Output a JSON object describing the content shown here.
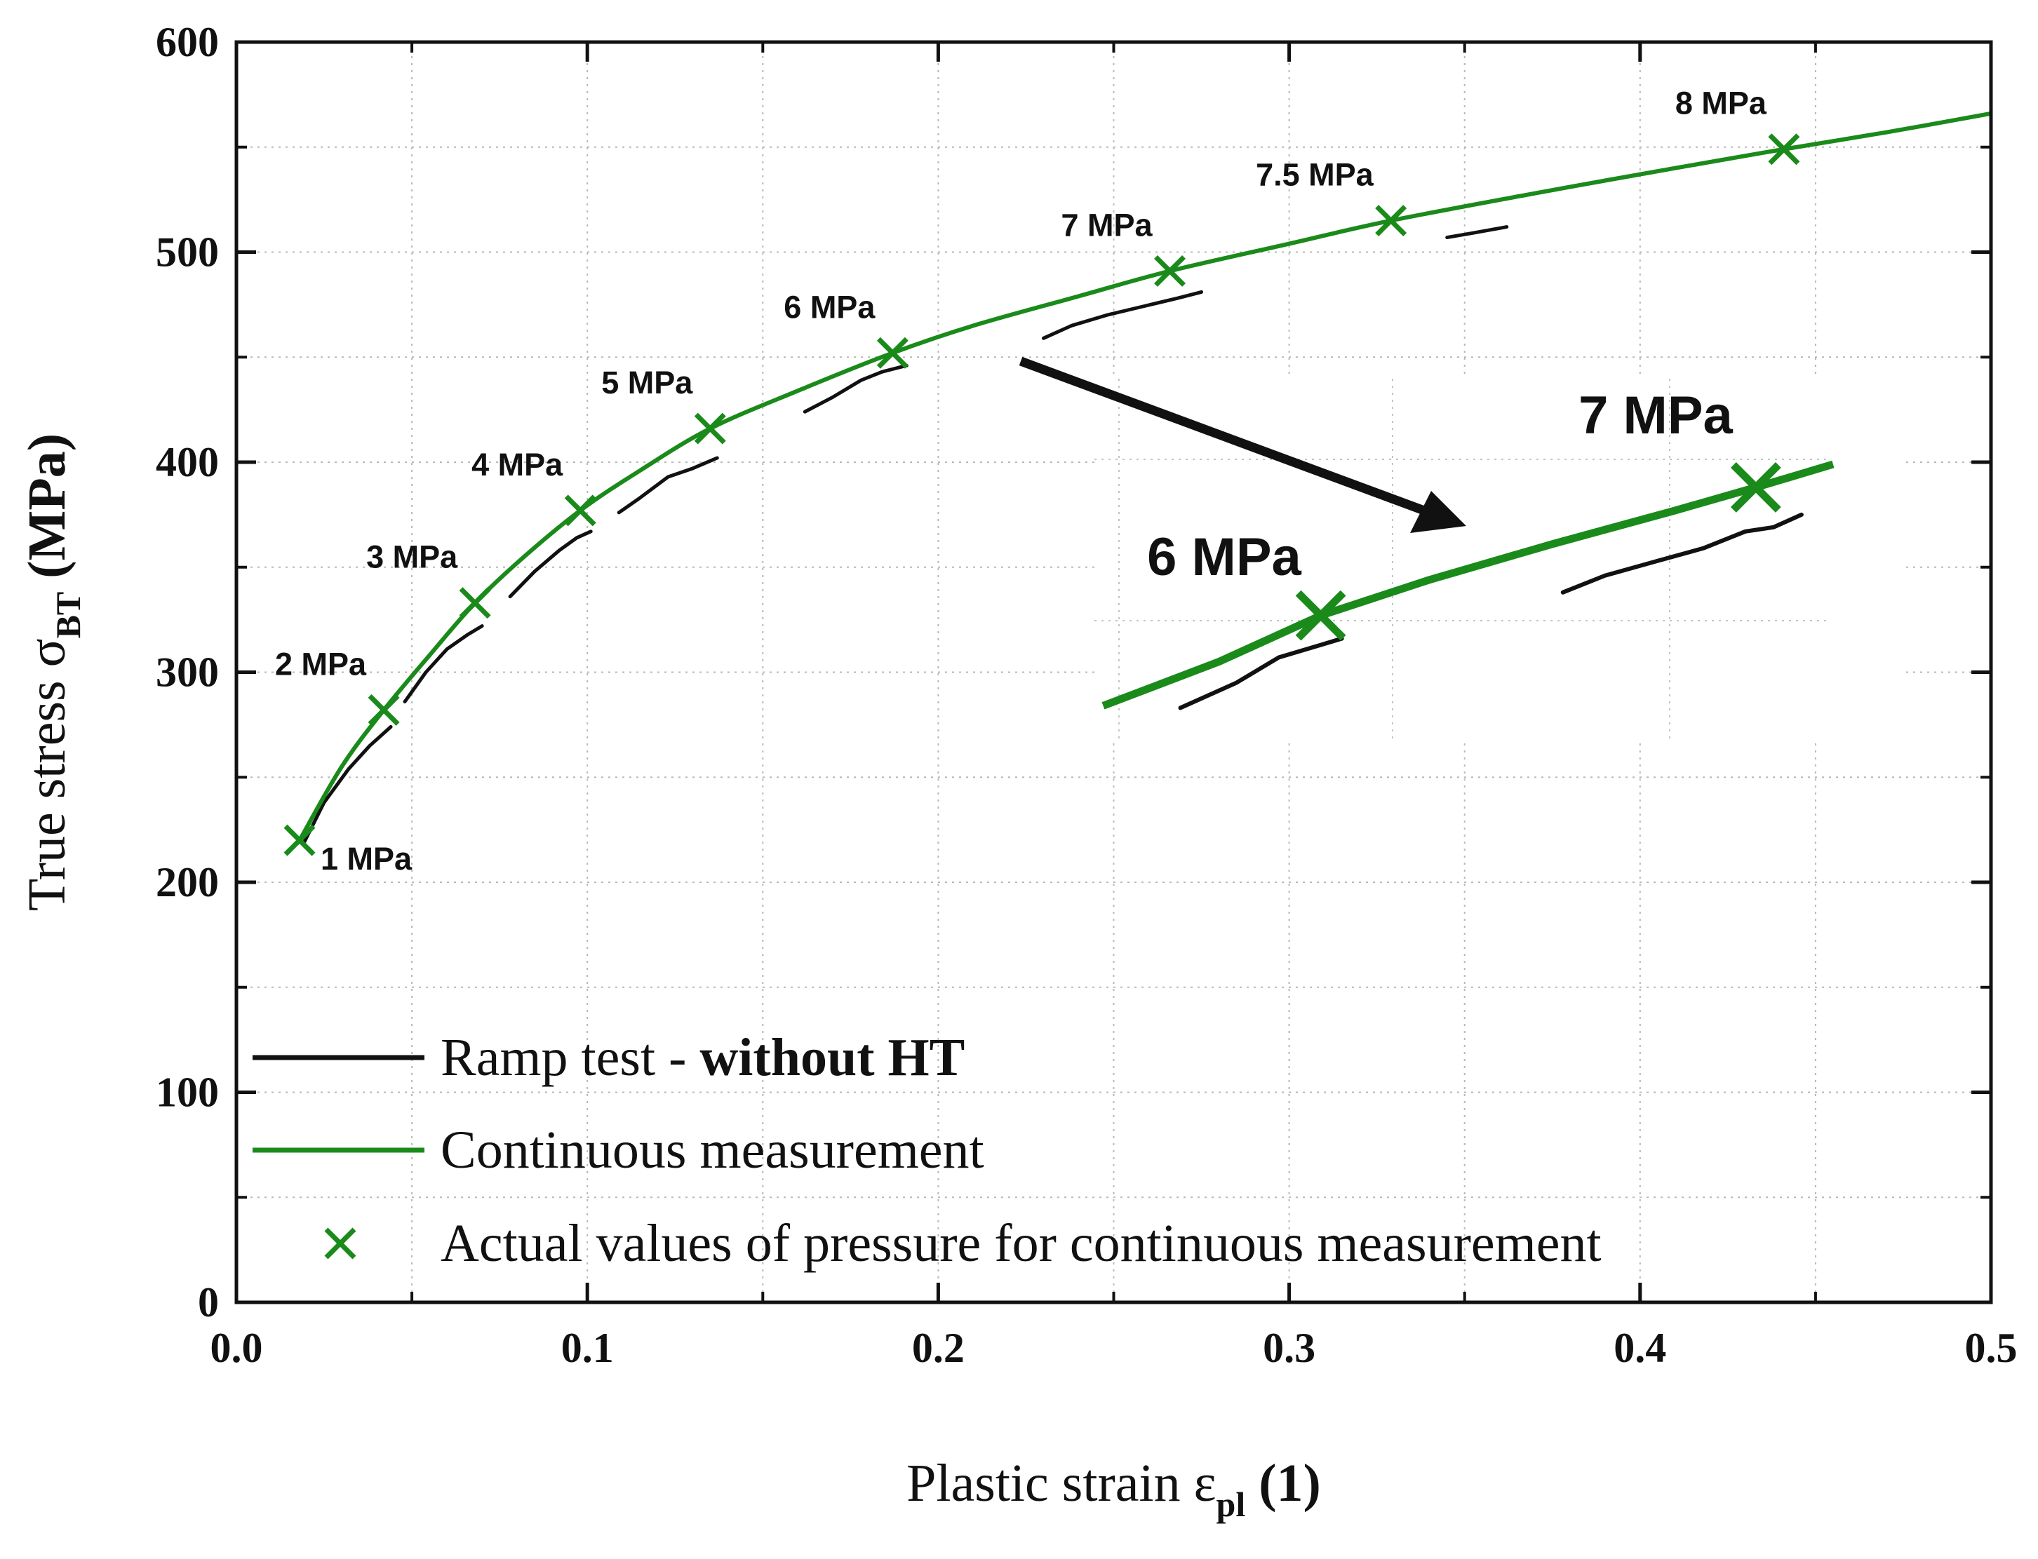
{
  "chart_data": {
    "type": "line",
    "title": "",
    "xlabel": {
      "main": "Plastic strain ε",
      "sub": "pl",
      "unit": " (1)"
    },
    "ylabel": {
      "main": "True stress σ",
      "sub": "BT",
      "unit": " (MPa)"
    },
    "xlim": [
      0.0,
      0.5
    ],
    "ylim": [
      0,
      600
    ],
    "xticks": [
      "0.0",
      "0.1",
      "0.2",
      "0.3",
      "0.4",
      "0.5"
    ],
    "xtick_values": [
      0.0,
      0.1,
      0.2,
      0.3,
      0.4,
      0.5
    ],
    "yticks": [
      "0",
      "100",
      "200",
      "300",
      "400",
      "500",
      "600"
    ],
    "ytick_values": [
      0,
      100,
      200,
      300,
      400,
      500,
      600
    ],
    "grid": true,
    "colors": {
      "ramp": "#111111",
      "continuous": "#1a8a1a",
      "grid": "#b8b8b8"
    },
    "series": [
      {
        "name": "Ramp test - without HT",
        "name_plain": "Ramp test - ",
        "name_bold": "without HT",
        "style": "segments",
        "segments": [
          [
            [
              0.019,
              218
            ],
            [
              0.025,
              238
            ],
            [
              0.032,
              254
            ],
            [
              0.038,
              265
            ],
            [
              0.044,
              274
            ]
          ],
          [
            [
              0.048,
              286
            ],
            [
              0.054,
              300
            ],
            [
              0.06,
              311
            ],
            [
              0.066,
              318
            ],
            [
              0.07,
              322
            ]
          ],
          [
            [
              0.078,
              336
            ],
            [
              0.085,
              348
            ],
            [
              0.092,
              358
            ],
            [
              0.097,
              364
            ],
            [
              0.101,
              367
            ]
          ],
          [
            [
              0.109,
              376
            ],
            [
              0.115,
              383
            ],
            [
              0.123,
              393
            ],
            [
              0.13,
              397
            ],
            [
              0.137,
              402
            ]
          ],
          [
            [
              0.162,
              424
            ],
            [
              0.17,
              431
            ],
            [
              0.178,
              439
            ],
            [
              0.184,
              443
            ],
            [
              0.191,
              446
            ]
          ],
          [
            [
              0.23,
              459
            ],
            [
              0.238,
              465
            ],
            [
              0.248,
              470
            ],
            [
              0.258,
              474
            ],
            [
              0.268,
              478
            ],
            [
              0.275,
              481
            ]
          ],
          [
            [
              0.345,
              507
            ],
            [
              0.352,
              509
            ],
            [
              0.362,
              512
            ]
          ]
        ]
      },
      {
        "name": "Continuous measurement",
        "style": "line",
        "points": [
          [
            0.018,
            220
          ],
          [
            0.03,
            255
          ],
          [
            0.042,
            282
          ],
          [
            0.055,
            308
          ],
          [
            0.068,
            333
          ],
          [
            0.082,
            355
          ],
          [
            0.098,
            377
          ],
          [
            0.115,
            396
          ],
          [
            0.135,
            416
          ],
          [
            0.16,
            434
          ],
          [
            0.187,
            452
          ],
          [
            0.21,
            465
          ],
          [
            0.24,
            479
          ],
          [
            0.266,
            491
          ],
          [
            0.3,
            504
          ],
          [
            0.329,
            515
          ],
          [
            0.37,
            528
          ],
          [
            0.41,
            540
          ],
          [
            0.441,
            549
          ],
          [
            0.47,
            557
          ],
          [
            0.5,
            566
          ]
        ]
      },
      {
        "name": "Actual values of pressure for continuous measurement",
        "style": "markers",
        "points": [
          {
            "x": 0.018,
            "y": 220,
            "label": "1 MPa",
            "anchor": "right-below"
          },
          {
            "x": 0.042,
            "y": 282,
            "label": "2 MPa",
            "anchor": "above-left"
          },
          {
            "x": 0.068,
            "y": 333,
            "label": "3 MPa",
            "anchor": "above-left"
          },
          {
            "x": 0.098,
            "y": 377,
            "label": "4 MPa",
            "anchor": "above-left"
          },
          {
            "x": 0.135,
            "y": 416,
            "label": "5 MPa",
            "anchor": "above-left"
          },
          {
            "x": 0.187,
            "y": 452,
            "label": "6 MPa",
            "anchor": "above-left"
          },
          {
            "x": 0.266,
            "y": 491,
            "label": "7 MPa",
            "anchor": "above-left"
          },
          {
            "x": 0.329,
            "y": 515,
            "label": "7.5 MPa",
            "anchor": "above-left"
          },
          {
            "x": 0.441,
            "y": 549,
            "label": "8 MPa",
            "anchor": "above-left"
          }
        ]
      }
    ],
    "inset": {
      "description_of_region": "magnified 6 MPa to 7 MPa",
      "labels": [
        "6 MPa",
        "7 MPa"
      ],
      "continuous_points": [
        [
          0.247,
          284
        ],
        [
          0.28,
          305
        ],
        [
          0.309,
          327
        ],
        [
          0.34,
          344
        ],
        [
          0.375,
          361
        ],
        [
          0.41,
          377
        ],
        [
          0.433,
          388
        ],
        [
          0.455,
          399
        ]
      ],
      "ramp_segments": [
        [
          [
            0.269,
            283
          ],
          [
            0.285,
            295
          ],
          [
            0.297,
            307
          ],
          [
            0.309,
            313
          ],
          [
            0.315,
            316
          ]
        ],
        [
          [
            0.378,
            338
          ],
          [
            0.39,
            346
          ],
          [
            0.405,
            353
          ],
          [
            0.418,
            359
          ],
          [
            0.43,
            367
          ],
          [
            0.438,
            369
          ],
          [
            0.446,
            375
          ]
        ]
      ],
      "markers": [
        [
          0.309,
          327
        ],
        [
          0.433,
          388
        ]
      ]
    },
    "legend": {
      "placement": "bottom-left",
      "entries": [
        {
          "series": "Ramp test - without HT",
          "text_plain": "Ramp test - ",
          "text_bold": "without HT",
          "symbol": "line",
          "color": "#111111"
        },
        {
          "series": "Continuous measurement",
          "text_plain": "Continuous measurement",
          "text_bold": "",
          "symbol": "line",
          "color": "#1a8a1a"
        },
        {
          "series": "Actual values of pressure for continuous measurement",
          "text_plain": "Actual values of pressure for continuous measurement",
          "text_bold": "",
          "symbol": "x",
          "color": "#1a8a1a"
        }
      ]
    }
  }
}
